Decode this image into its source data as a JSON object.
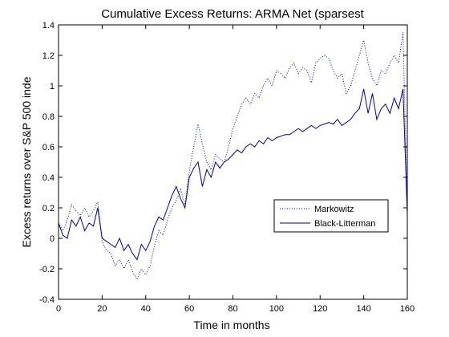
{
  "chart_data": {
    "type": "line",
    "title": "Cumulative Excess Returns: ARMA Net (sparsest",
    "xlabel": "Time in months",
    "ylabel": "Excess returns over S&P 500 inde",
    "xlim": [
      0,
      160
    ],
    "ylim": [
      -0.4,
      1.4
    ],
    "xticks": [
      0,
      20,
      40,
      60,
      80,
      100,
      120,
      140,
      160
    ],
    "xtick_labels": [
      "0",
      "20",
      "40",
      "60",
      "80",
      "100",
      "120",
      "140",
      "160"
    ],
    "yticks": [
      -0.4,
      -0.2,
      0,
      0.2,
      0.4,
      0.6,
      0.8,
      1,
      1.2,
      1.4
    ],
    "ytick_labels": [
      "-0.4",
      "-0.2",
      "0",
      "0.2",
      "0.4",
      "0.6",
      "0.8",
      "1",
      "1.2",
      "1.4"
    ],
    "grid": false,
    "legend_position": "right-middle",
    "series": [
      {
        "name": "Markowitz",
        "color": "#00008b",
        "line_style": "dotted",
        "x": [
          0,
          2,
          4,
          6,
          8,
          10,
          12,
          14,
          16,
          18,
          20,
          22,
          24,
          26,
          28,
          30,
          32,
          34,
          36,
          38,
          40,
          42,
          44,
          46,
          48,
          50,
          52,
          54,
          56,
          58,
          60,
          62,
          64,
          66,
          68,
          70,
          72,
          74,
          76,
          78,
          80,
          82,
          84,
          86,
          88,
          90,
          92,
          94,
          96,
          98,
          100,
          102,
          104,
          106,
          108,
          110,
          112,
          114,
          116,
          118,
          120,
          122,
          124,
          126,
          128,
          130,
          132,
          134,
          136,
          138,
          140,
          142,
          144,
          146,
          148,
          150,
          152,
          154,
          156,
          158,
          160
        ],
        "y": [
          0.1,
          0.05,
          0.12,
          0.22,
          0.18,
          0.15,
          0.2,
          0.14,
          0.18,
          0.24,
          -0.02,
          -0.08,
          -0.1,
          -0.18,
          -0.14,
          -0.2,
          -0.14,
          -0.22,
          -0.27,
          -0.2,
          -0.24,
          -0.18,
          -0.05,
          0.05,
          0.02,
          0.12,
          0.2,
          0.25,
          0.32,
          0.22,
          0.44,
          0.6,
          0.75,
          0.62,
          0.5,
          0.45,
          0.55,
          0.52,
          0.5,
          0.6,
          0.72,
          0.8,
          0.88,
          0.92,
          0.88,
          0.95,
          0.92,
          1.0,
          1.05,
          1.0,
          1.1,
          1.08,
          1.05,
          1.12,
          1.15,
          1.08,
          1.12,
          1.1,
          1.02,
          1.15,
          1.18,
          1.2,
          1.18,
          1.1,
          1.05,
          1.08,
          0.95,
          1.0,
          1.1,
          1.2,
          1.3,
          1.15,
          1.05,
          1.0,
          1.1,
          1.08,
          1.15,
          1.2,
          1.15,
          1.35,
          0.15
        ]
      },
      {
        "name": "Black-Litterman",
        "color": "#00008b",
        "line_style": "solid",
        "x": [
          0,
          2,
          4,
          6,
          8,
          10,
          12,
          14,
          16,
          18,
          20,
          22,
          24,
          26,
          28,
          30,
          32,
          34,
          36,
          38,
          40,
          42,
          44,
          46,
          48,
          50,
          52,
          54,
          56,
          58,
          60,
          62,
          64,
          66,
          68,
          70,
          72,
          74,
          76,
          78,
          80,
          82,
          84,
          86,
          88,
          90,
          92,
          94,
          96,
          98,
          100,
          102,
          104,
          106,
          108,
          110,
          112,
          114,
          116,
          118,
          120,
          122,
          124,
          126,
          128,
          130,
          132,
          134,
          136,
          138,
          140,
          142,
          144,
          146,
          148,
          150,
          152,
          154,
          156,
          158,
          160
        ],
        "y": [
          0.1,
          0.02,
          0.0,
          0.12,
          0.08,
          0.14,
          0.05,
          0.1,
          0.08,
          0.2,
          0.0,
          -0.02,
          -0.04,
          -0.06,
          0.0,
          -0.08,
          -0.04,
          -0.1,
          -0.14,
          -0.04,
          -0.08,
          -0.02,
          0.08,
          0.14,
          0.12,
          0.2,
          0.28,
          0.34,
          0.26,
          0.2,
          0.4,
          0.46,
          0.5,
          0.34,
          0.45,
          0.4,
          0.5,
          0.46,
          0.5,
          0.52,
          0.55,
          0.58,
          0.56,
          0.6,
          0.62,
          0.6,
          0.64,
          0.62,
          0.66,
          0.64,
          0.66,
          0.67,
          0.68,
          0.68,
          0.7,
          0.72,
          0.7,
          0.72,
          0.74,
          0.72,
          0.74,
          0.75,
          0.76,
          0.75,
          0.78,
          0.74,
          0.76,
          0.78,
          0.82,
          0.85,
          0.98,
          0.82,
          0.95,
          0.78,
          0.85,
          0.88,
          0.82,
          0.92,
          0.85,
          0.98,
          0.16
        ]
      }
    ]
  }
}
